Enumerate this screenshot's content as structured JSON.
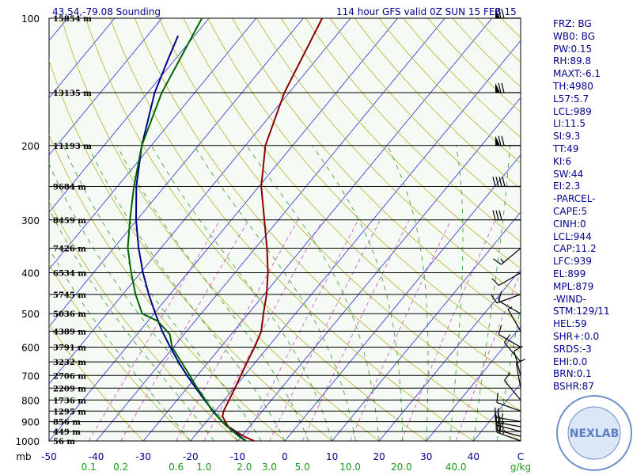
{
  "header": {
    "location": "43.54,-79.08 Sounding",
    "valid": "114 hour GFS valid 0Z SUN 15 FEB 15"
  },
  "indices": [
    "FRZ: BG",
    "WB0: BG",
    "PW:0.15",
    "RH:89.8",
    "MAXT:-6.1",
    "TH:4980",
    "L57:5.7",
    "LCL:989",
    "LI:11.5",
    "SI:9.3",
    "TT:49",
    "KI:6",
    "SW:44",
    "EI:2.3",
    "-PARCEL-",
    "CAPE:5",
    "CINH:0",
    "LCL:944",
    "CAP:11.2",
    "LFC:939",
    "EL:899",
    "MPL:879",
    "-WIND-",
    "STM:129/11",
    "HEL:59",
    "SHR+:0.0",
    "SRDS:-3",
    "EHI:0.0",
    "BRN:0.1",
    "BSHR:87"
  ],
  "logo": {
    "text": "NEXLAB",
    "ring_text": "Next Generation Weather Lab · College of DuPage"
  },
  "chart_data": {
    "type": "line",
    "title": "43.54,-79.08 Sounding   114 hour GFS valid 0Z SUN 15 FEB 15",
    "x_unit_label": "C",
    "mixing_unit_label": "g/kg",
    "pressure_corner_label": "mb",
    "xlim": [
      -50,
      50
    ],
    "pressure_range": [
      100,
      1000
    ],
    "pressure_labels": [
      {
        "p": 100,
        "label": "100"
      },
      {
        "p": 200,
        "label": "200"
      },
      {
        "p": 300,
        "label": "300"
      },
      {
        "p": 400,
        "label": "400"
      },
      {
        "p": 500,
        "label": "500"
      },
      {
        "p": 600,
        "label": "600"
      },
      {
        "p": 700,
        "label": "700"
      },
      {
        "p": 800,
        "label": "800"
      },
      {
        "p": 900,
        "label": "900"
      },
      {
        "p": 1000,
        "label": "1000"
      }
    ],
    "temperature_ticks": [
      {
        "t": -50,
        "label": "-50"
      },
      {
        "t": -40,
        "label": "-40"
      },
      {
        "t": -30,
        "label": "-30"
      },
      {
        "t": -20,
        "label": "-20"
      },
      {
        "t": -10,
        "label": "-10"
      },
      {
        "t": 0,
        "label": "0"
      },
      {
        "t": 10,
        "label": "10"
      },
      {
        "t": 20,
        "label": "20"
      },
      {
        "t": 30,
        "label": "30"
      },
      {
        "t": 40,
        "label": "40"
      }
    ],
    "mixing_ratio_ticks": [
      {
        "w": 0.1,
        "label": "0.1"
      },
      {
        "w": 0.2,
        "label": "0.2"
      },
      {
        "w": 0.6,
        "label": "0.6"
      },
      {
        "w": 1.0,
        "label": "1.0"
      },
      {
        "w": 2.0,
        "label": "2.0"
      },
      {
        "w": 3.0,
        "label": "3.0"
      },
      {
        "w": 5.0,
        "label": "5.0"
      },
      {
        "w": 10.0,
        "label": "10.0"
      },
      {
        "w": 20.0,
        "label": "20.0"
      },
      {
        "w": 40.0,
        "label": "40.0"
      }
    ],
    "height_levels": [
      {
        "p": 1000,
        "label": "56 m"
      },
      {
        "p": 950,
        "label": "449 m"
      },
      {
        "p": 900,
        "label": "856 m"
      },
      {
        "p": 850,
        "label": "1295 m"
      },
      {
        "p": 800,
        "label": "1736 m"
      },
      {
        "p": 750,
        "label": "2209 m"
      },
      {
        "p": 700,
        "label": "2706 m"
      },
      {
        "p": 650,
        "label": "3232 m"
      },
      {
        "p": 600,
        "label": "3791 m"
      },
      {
        "p": 550,
        "label": "4389 m"
      },
      {
        "p": 500,
        "label": "5036 m"
      },
      {
        "p": 450,
        "label": "5745 m"
      },
      {
        "p": 400,
        "label": "6534 m"
      },
      {
        "p": 350,
        "label": "7426 m"
      },
      {
        "p": 300,
        "label": "8459 m"
      },
      {
        "p": 250,
        "label": "9684 m"
      },
      {
        "p": 200,
        "label": "11193 m"
      },
      {
        "p": 150,
        "label": "13135 m"
      },
      {
        "p": 100,
        "label": "15854 m"
      }
    ],
    "series": [
      {
        "key": "virtual_temperature",
        "color": "#8b0000",
        "points": [
          [
            1000,
            -6.5
          ],
          [
            975,
            -9.5
          ],
          [
            950,
            -12
          ],
          [
            925,
            -14.5
          ],
          [
            900,
            -16
          ],
          [
            875,
            -17.5
          ],
          [
            850,
            -18.2
          ],
          [
            800,
            -19
          ],
          [
            750,
            -19.8
          ],
          [
            700,
            -20.8
          ],
          [
            650,
            -21.8
          ],
          [
            600,
            -22.8
          ],
          [
            550,
            -24.2
          ],
          [
            500,
            -26.8
          ],
          [
            450,
            -29.5
          ],
          [
            400,
            -33
          ],
          [
            350,
            -37.5
          ],
          [
            300,
            -43
          ],
          [
            250,
            -49.5
          ],
          [
            200,
            -55.8
          ],
          [
            150,
            -61
          ],
          [
            100,
            -66
          ]
        ]
      },
      {
        "key": "dewpoint",
        "color": "#00008b",
        "points": [
          [
            1000,
            -8.3
          ],
          [
            975,
            -10.3
          ],
          [
            950,
            -12.3
          ],
          [
            925,
            -14.7
          ],
          [
            900,
            -16.7
          ],
          [
            850,
            -20.4
          ],
          [
            800,
            -24.2
          ],
          [
            750,
            -28.1
          ],
          [
            700,
            -32.2
          ],
          [
            650,
            -36.4
          ],
          [
            600,
            -40.7
          ],
          [
            550,
            -45.2
          ],
          [
            500,
            -49.7
          ],
          [
            450,
            -54.5
          ],
          [
            400,
            -59.5
          ],
          [
            350,
            -64.7
          ],
          [
            300,
            -70.2
          ],
          [
            250,
            -76
          ],
          [
            200,
            -82
          ],
          [
            150,
            -88.5
          ],
          [
            125,
            -91.5
          ],
          [
            110,
            -93.5
          ]
        ]
      },
      {
        "key": "wet_bulb",
        "color": "#006400",
        "points": [
          [
            1000,
            -8.3
          ],
          [
            975,
            -10.6
          ],
          [
            950,
            -12.6
          ],
          [
            925,
            -14.6
          ],
          [
            900,
            -16.6
          ],
          [
            875,
            -18.6
          ],
          [
            850,
            -20.6
          ],
          [
            800,
            -24
          ],
          [
            750,
            -27.8
          ],
          [
            700,
            -31.6
          ],
          [
            650,
            -35.8
          ],
          [
            600,
            -40.3
          ],
          [
            560,
            -43
          ],
          [
            520,
            -48
          ],
          [
            500,
            -52.5
          ],
          [
            450,
            -57.3
          ],
          [
            400,
            -62
          ],
          [
            350,
            -67
          ],
          [
            300,
            -71.5
          ],
          [
            250,
            -76.5
          ],
          [
            200,
            -82
          ],
          [
            150,
            -87
          ],
          [
            100,
            -91.5
          ]
        ]
      }
    ],
    "wind_barbs": [
      {
        "p": 1000,
        "dir": 290,
        "spd": 25
      },
      {
        "p": 975,
        "dir": 285,
        "spd": 25
      },
      {
        "p": 950,
        "dir": 285,
        "spd": 25
      },
      {
        "p": 925,
        "dir": 280,
        "spd": 25
      },
      {
        "p": 900,
        "dir": 280,
        "spd": 25
      },
      {
        "p": 850,
        "dir": 290,
        "spd": 10
      },
      {
        "p": 800,
        "dir": 320,
        "spd": 10
      },
      {
        "p": 750,
        "dir": 350,
        "spd": 10
      },
      {
        "p": 700,
        "dir": 345,
        "spd": 10
      },
      {
        "p": 650,
        "dir": 320,
        "spd": 10
      },
      {
        "p": 600,
        "dir": 300,
        "spd": 10
      },
      {
        "p": 550,
        "dir": 330,
        "spd": 5
      },
      {
        "p": 500,
        "dir": 300,
        "spd": 10
      },
      {
        "p": 450,
        "dir": 250,
        "spd": 15
      },
      {
        "p": 400,
        "dir": 240,
        "spd": 10
      },
      {
        "p": 350,
        "dir": 230,
        "spd": 15
      },
      {
        "p": 300,
        "dir": 270,
        "spd": 30
      },
      {
        "p": 250,
        "dir": 270,
        "spd": 40
      },
      {
        "p": 200,
        "dir": 270,
        "spd": 70
      },
      {
        "p": 150,
        "dir": 270,
        "spd": 70
      },
      {
        "p": 100,
        "dir": 270,
        "spd": 70
      }
    ]
  }
}
